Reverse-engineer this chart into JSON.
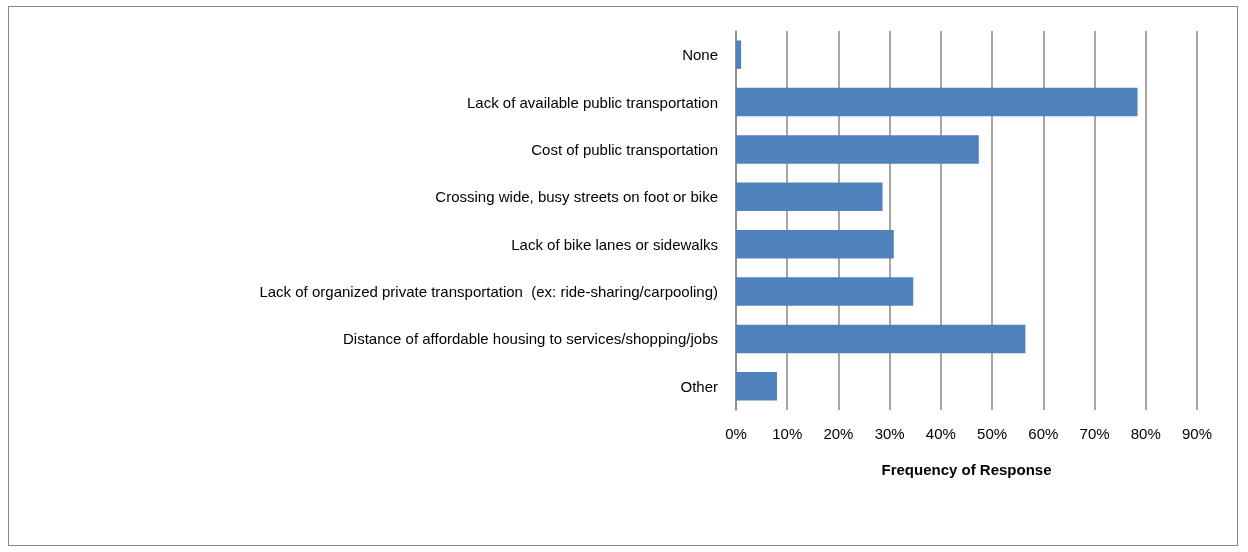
{
  "chart_data": {
    "type": "bar",
    "orientation": "horizontal",
    "xlabel": "Frequency of Response",
    "categories": [
      "None",
      "Lack of available public transportation",
      "Cost of public transportation",
      "Crossing wide, busy streets on foot or bike",
      "Lack of bike lanes or sidewalks",
      "Lack of organized private transportation  (ex: ride-sharing/carpooling)",
      "Distance of affordable housing to services/shopping/jobs",
      "Other"
    ],
    "values": [
      1,
      78.4,
      47.4,
      28.6,
      30.8,
      34.6,
      56.5,
      8
    ],
    "color": "#4f81bd",
    "xlim": [
      0,
      90
    ],
    "xticks": [
      {
        "value": 0,
        "label": "0%"
      },
      {
        "value": 10,
        "label": "10%"
      },
      {
        "value": 20,
        "label": "20%"
      },
      {
        "value": 30,
        "label": "30%"
      },
      {
        "value": 40,
        "label": "40%"
      },
      {
        "value": 50,
        "label": "50%"
      },
      {
        "value": 60,
        "label": "60%"
      },
      {
        "value": 70,
        "label": "70%"
      },
      {
        "value": 80,
        "label": "80%"
      },
      {
        "value": 90,
        "label": "90%"
      }
    ],
    "grid": "x"
  }
}
